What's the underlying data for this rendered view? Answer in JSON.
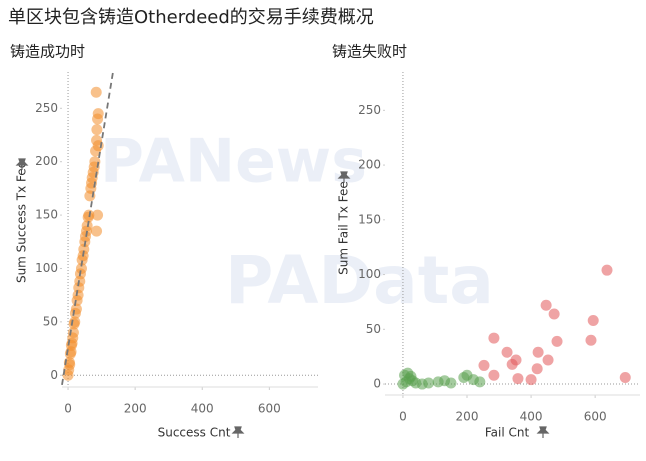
{
  "title": "单区块包含铸造Otherdeed的交易手续费概况",
  "watermarks": [
    "PANews",
    "PAData"
  ],
  "chart_data": [
    {
      "type": "scatter",
      "title": "铸造成功时",
      "x_label": "Success Cnt",
      "y_label": "Sum Success Tx Fee",
      "xlim": [
        -18,
        745
      ],
      "ylim": [
        -11,
        284
      ],
      "xticks": [
        0,
        200,
        400,
        600
      ],
      "yticks": [
        0,
        50,
        100,
        150,
        200,
        250
      ],
      "series": [
        {
          "color": "#f28e2b",
          "x": [
            0,
            2,
            4,
            5,
            7,
            9,
            10,
            12,
            14,
            16,
            18,
            20,
            22,
            25,
            27,
            30,
            32,
            35,
            37,
            40,
            42,
            45,
            47,
            50,
            52,
            55,
            57,
            60,
            62,
            65,
            68,
            70,
            72,
            75,
            78,
            80,
            82,
            85,
            86,
            88,
            90,
            85,
            88,
            90,
            84
          ],
          "y": [
            0,
            5,
            12,
            10,
            20,
            22,
            28,
            30,
            35,
            40,
            48,
            50,
            58,
            62,
            70,
            75,
            82,
            88,
            95,
            100,
            108,
            112,
            118,
            125,
            130,
            135,
            140,
            148,
            150,
            168,
            175,
            180,
            185,
            190,
            195,
            200,
            210,
            220,
            230,
            240,
            245,
            135,
            150,
            215,
            265
          ]
        }
      ],
      "trend_line": {
        "color": "#777777",
        "x": [
          -18,
          134
        ],
        "y": [
          -9,
          284
        ]
      }
    },
    {
      "type": "scatter",
      "title": "铸造失败时",
      "x_label": "Fail Cnt",
      "y_label": "Sum Fail Tx Fee",
      "xlim": [
        -56,
        740
      ],
      "ylim": [
        -10,
        285
      ],
      "xticks": [
        0,
        200,
        400,
        600
      ],
      "yticks": [
        0,
        50,
        100,
        150,
        200,
        250
      ],
      "series": [
        {
          "color": "#59a14f",
          "x": [
            0,
            5,
            10,
            15,
            20,
            25,
            30,
            40,
            60,
            80,
            110,
            130,
            150,
            190,
            200,
            220,
            240
          ],
          "y": [
            0,
            8,
            2,
            10,
            5,
            7,
            3,
            1,
            0,
            1,
            2,
            3,
            1,
            6,
            8,
            4,
            2
          ]
        },
        {
          "color": "#e15759",
          "x": [
            637,
            447,
            472,
            594,
            587,
            481,
            284,
            325,
            422,
            353,
            341,
            253,
            453,
            419,
            284,
            359,
            400,
            694
          ],
          "y": [
            104,
            72,
            64,
            58,
            40,
            39,
            42,
            29,
            29,
            22,
            18,
            17,
            22,
            14,
            8,
            5,
            4,
            6
          ]
        }
      ]
    }
  ]
}
